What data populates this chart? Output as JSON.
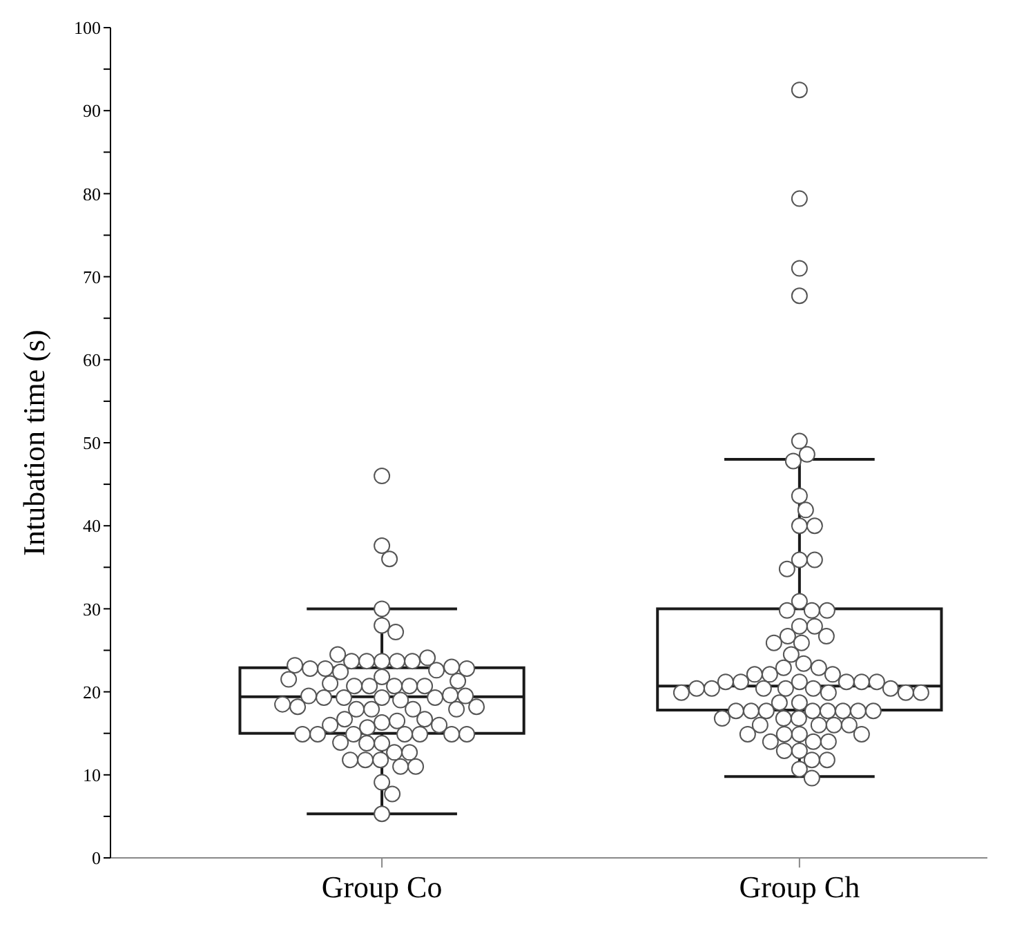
{
  "chart_data": {
    "type": "box",
    "ylabel": "Intubation time (s)",
    "categories": [
      "Group Co",
      "Group Ch"
    ],
    "ylim": [
      0,
      100
    ],
    "yticks": [
      0,
      {
        "value": 5,
        "label": null
      },
      10,
      {
        "value": 15,
        "label": null
      },
      20,
      {
        "value": 25,
        "label": null
      },
      30,
      {
        "value": 35,
        "label": null
      },
      40,
      {
        "value": 45,
        "label": null
      },
      50,
      {
        "value": 55,
        "label": null
      },
      60,
      {
        "value": 65,
        "label": null
      },
      70,
      {
        "value": 75,
        "label": null
      },
      80,
      {
        "value": 85,
        "label": null
      },
      90,
      {
        "value": 95,
        "label": null
      },
      100
    ],
    "marker": "circle",
    "series": [
      {
        "type": "box",
        "color": "#1a1a1a",
        "boxes": [
          {
            "low": 5.3,
            "q1": 15,
            "median": 19.4,
            "q3": 22.9,
            "high": 30
          },
          {
            "low": 9.8,
            "q1": 17.8,
            "median": 20.7,
            "q3": 30,
            "high": 48
          }
        ]
      },
      {
        "type": "scatter",
        "color": "#555555",
        "x": [
          "Group Co",
          "Group Co",
          "Group Co",
          "Group Co",
          "Group Co",
          "Group Co",
          "Group Co",
          "Group Co",
          "Group Co",
          "Group Co",
          "Group Co",
          "Group Co",
          "Group Co",
          "Group Co",
          "Group Co",
          "Group Co",
          "Group Co",
          "Group Co",
          "Group Co",
          "Group Co",
          "Group Co",
          "Group Co",
          "Group Co",
          "Group Co",
          "Group Co",
          "Group Co",
          "Group Co",
          "Group Co",
          "Group Co",
          "Group Co",
          "Group Co",
          "Group Co",
          "Group Co",
          "Group Co",
          "Group Co",
          "Group Co",
          "Group Co",
          "Group Co",
          "Group Co",
          "Group Co",
          "Group Co",
          "Group Co",
          "Group Co",
          "Group Co",
          "Group Co",
          "Group Co",
          "Group Co",
          "Group Co",
          "Group Co",
          "Group Co",
          "Group Co",
          "Group Co",
          "Group Co",
          "Group Co",
          "Group Co",
          "Group Co",
          "Group Co",
          "Group Co",
          "Group Co",
          "Group Co",
          "Group Co",
          "Group Co",
          "Group Co",
          "Group Co",
          "Group Co",
          "Group Co",
          "Group Co",
          "Group Co",
          "Group Co",
          "Group Co",
          "Group Co",
          "Group Ch",
          "Group Ch",
          "Group Ch",
          "Group Ch",
          "Group Ch",
          "Group Ch",
          "Group Ch",
          "Group Ch",
          "Group Ch",
          "Group Ch",
          "Group Ch",
          "Group Ch",
          "Group Ch",
          "Group Ch",
          "Group Ch",
          "Group Ch",
          "Group Ch",
          "Group Ch",
          "Group Ch",
          "Group Ch",
          "Group Ch",
          "Group Ch",
          "Group Ch",
          "Group Ch",
          "Group Ch",
          "Group Ch",
          "Group Ch",
          "Group Ch",
          "Group Ch",
          "Group Ch",
          "Group Ch",
          "Group Ch",
          "Group Ch",
          "Group Ch",
          "Group Ch",
          "Group Ch",
          "Group Ch",
          "Group Ch",
          "Group Ch",
          "Group Ch",
          "Group Ch",
          "Group Ch",
          "Group Ch",
          "Group Ch",
          "Group Ch",
          "Group Ch",
          "Group Ch",
          "Group Ch",
          "Group Ch",
          "Group Ch",
          "Group Ch",
          "Group Ch",
          "Group Ch",
          "Group Ch",
          "Group Ch",
          "Group Ch",
          "Group Ch",
          "Group Ch",
          "Group Ch",
          "Group Ch",
          "Group Ch",
          "Group Ch",
          "Group Ch",
          "Group Ch",
          "Group Ch",
          "Group Ch",
          "Group Ch",
          "Group Ch",
          "Group Ch",
          "Group Ch",
          "Group Ch",
          "Group Ch",
          "Group Ch",
          "Group Ch",
          "Group Ch",
          "Group Ch",
          "Group Ch"
        ],
        "values": [
          46,
          37.6,
          36,
          30,
          28,
          27.2,
          23.7,
          23.7,
          23.7,
          23.7,
          23.7,
          24.1,
          24.5,
          22.4,
          22.6,
          22.8,
          23,
          22.8,
          22.8,
          23.2,
          21.8,
          20.7,
          20.7,
          20.7,
          20.7,
          20.7,
          21,
          21.3,
          21.5,
          19.3,
          19.3,
          19.3,
          19.3,
          19.6,
          19.5,
          19.5,
          19,
          17.9,
          17.9,
          17.9,
          17.9,
          18.2,
          18.2,
          18.5,
          16.3,
          16.5,
          16.7,
          16.7,
          15.7,
          16,
          16,
          14.9,
          14.9,
          14.9,
          14.9,
          14.9,
          14.9,
          14.9,
          13.8,
          13.8,
          13.9,
          12.7,
          12.7,
          11.8,
          11.8,
          11.8,
          11,
          11,
          9.1,
          7.7,
          5.3,
          92.5,
          79.4,
          71,
          67.7,
          50.2,
          48.6,
          47.8,
          43.6,
          41.9,
          40,
          40,
          35.9,
          35.9,
          34.8,
          30.9,
          29.8,
          29.8,
          29.8,
          27.9,
          27.9,
          26.7,
          26.7,
          25.9,
          25.9,
          24.5,
          23.4,
          22.9,
          22.9,
          22.1,
          22.1,
          22.1,
          21.2,
          21.2,
          21.2,
          21.2,
          21.2,
          21.2,
          20.4,
          20.4,
          20.4,
          20.4,
          20.4,
          20.4,
          19.9,
          19.9,
          19.9,
          19.9,
          18.7,
          18.7,
          17.7,
          17.7,
          17.7,
          17.7,
          17.7,
          17.7,
          17.7,
          17.7,
          16.8,
          16.8,
          16.8,
          16,
          16,
          16,
          16,
          14.9,
          14.9,
          14.9,
          14.9,
          14,
          14,
          14,
          12.9,
          12.9,
          11.8,
          11.8,
          10.7,
          9.6
        ]
      }
    ]
  }
}
